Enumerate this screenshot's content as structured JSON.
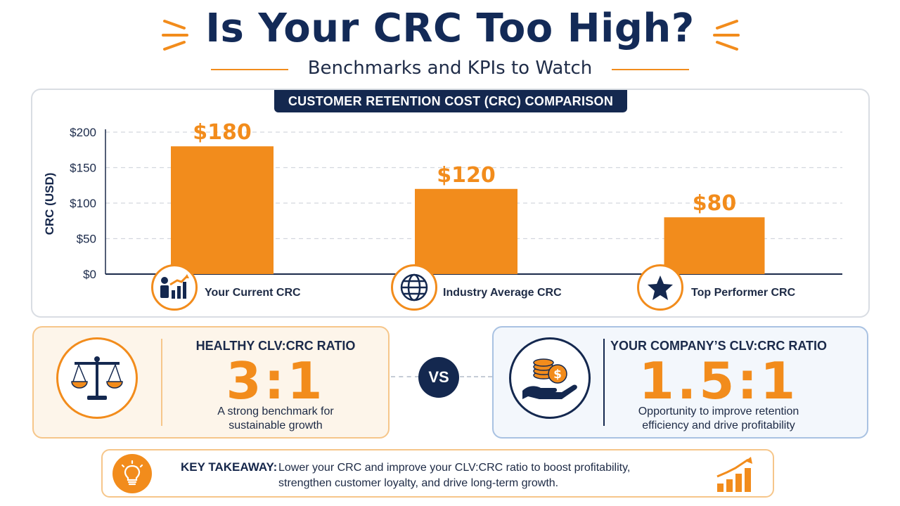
{
  "header": {
    "title": "Is Your CRC Too High?",
    "subtitle": "Benchmarks and KPIs to Watch"
  },
  "chart_badge": "CUSTOMER RETENTION COST (CRC) COMPARISON",
  "chart_data": {
    "type": "bar",
    "title": "CUSTOMER RETENTION COST (CRC) COMPARISON",
    "categories": [
      "Your Current CRC",
      "Industry Average CRC",
      "Top Performer CRC"
    ],
    "values": [
      180,
      120,
      80
    ],
    "data_labels": [
      "$180",
      "$120",
      "$80"
    ],
    "ylabel": "CRC (USD)",
    "xlabel": "",
    "ylim": [
      0,
      200
    ],
    "yticks": [
      0,
      50,
      100,
      150,
      200
    ],
    "ytick_labels": [
      "$0",
      "$50",
      "$100",
      "$150",
      "$200"
    ],
    "grid": true,
    "bar_color": "#f28c1c",
    "category_icons": [
      "growth-chart-person-icon",
      "globe-icon",
      "star-icon"
    ]
  },
  "ratios": {
    "healthy": {
      "heading": "HEALTHY CLV:CRC RATIO",
      "value": "3:1",
      "description_line1": "A strong benchmark for",
      "description_line2": "sustainable growth",
      "icon": "balance-scale-icon"
    },
    "vs_label": "VS",
    "company": {
      "heading": "YOUR COMPANY’S CLV:CRC RATIO",
      "value": "1.5:1",
      "description_line1": "Opportunity to improve retention",
      "description_line2": "efficiency and drive profitability",
      "icon": "coins-in-hand-icon"
    }
  },
  "takeaway": {
    "label": "KEY TAKEAWAY:",
    "line1": "Lower your CRC and improve your CLV:CRC ratio to boost profitability,",
    "line2": "strengthen customer loyalty, and drive long-term growth.",
    "icons": [
      "lightbulb-icon",
      "growth-bars-icon"
    ]
  },
  "colors": {
    "navy": "#14284f",
    "orange": "#f28c1c",
    "left_card_bg": "#fdf5ea",
    "right_card_bg": "#f3f7fc"
  }
}
